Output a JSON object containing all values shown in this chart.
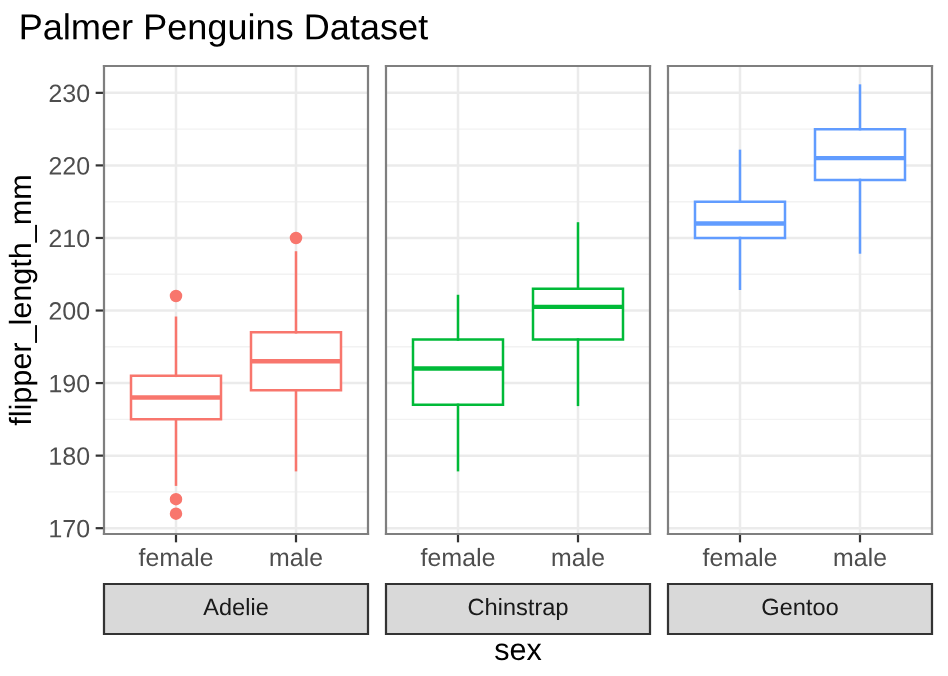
{
  "chart_data": [
    {
      "type": "box",
      "title": "Palmer Penguins Dataset",
      "subtitle": "Adelie",
      "ylabel": "flipper_length_mm",
      "categories": [
        "female",
        "male"
      ],
      "ylim": [
        169.2,
        233.7
      ],
      "yticks": [
        170,
        180,
        190,
        200,
        210,
        220,
        230
      ],
      "grid": true,
      "series": [
        {
          "color": "#f8766d",
          "boxes": [
            {
              "low": 176,
              "q1": 185,
              "median": 188,
              "q3": 191,
              "high": 199,
              "outliers": [
                202,
                174,
                172
              ]
            },
            {
              "low": 178,
              "q1": 189,
              "median": 193,
              "q3": 197,
              "high": 208,
              "outliers": [
                210
              ]
            }
          ]
        }
      ]
    },
    {
      "type": "box",
      "subtitle": "Chinstrap",
      "xlabel": "sex",
      "categories": [
        "female",
        "male"
      ],
      "ylim": [
        169.2,
        233.7
      ],
      "yticks": [
        170,
        180,
        190,
        200,
        210,
        220,
        230
      ],
      "grid": true,
      "tick_labels": "x",
      "series": [
        {
          "color": "#00ba38",
          "boxes": [
            {
              "low": 178,
              "q1": 187,
              "median": 192,
              "q3": 196,
              "high": 202
            },
            {
              "low": 187,
              "q1": 196,
              "median": 200.5,
              "q3": 203,
              "high": 212
            }
          ]
        }
      ]
    },
    {
      "type": "box",
      "subtitle": "Gentoo",
      "categories": [
        "female",
        "male"
      ],
      "ylim": [
        169.2,
        233.7
      ],
      "yticks": [
        170,
        180,
        190,
        200,
        210,
        220,
        230
      ],
      "grid": true,
      "tick_labels": "x",
      "series": [
        {
          "color": "#619cff",
          "boxes": [
            {
              "low": 203,
              "q1": 210,
              "median": 212,
              "q3": 215,
              "high": 222
            },
            {
              "low": 208,
              "q1": 218,
              "median": 221,
              "q3": 225,
              "high": 231
            }
          ]
        }
      ]
    }
  ]
}
